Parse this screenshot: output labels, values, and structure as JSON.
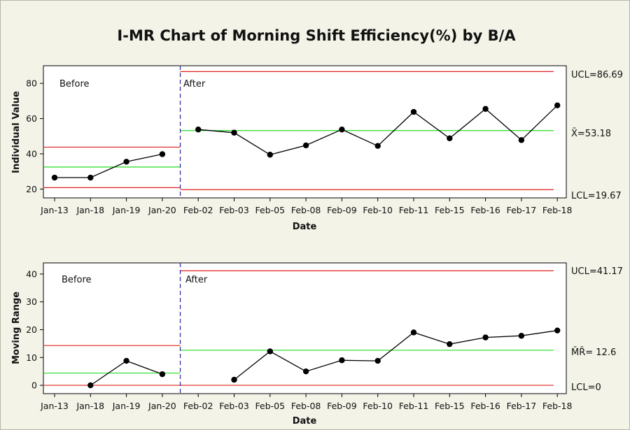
{
  "chart_data": {
    "title": "I-MR Chart of Morning Shift Efficiency(%) by B/A",
    "dates": [
      "Jan-13",
      "Jan-18",
      "Jan-19",
      "Jan-20",
      "Feb-02",
      "Feb-03",
      "Feb-05",
      "Feb-08",
      "Feb-09",
      "Feb-10",
      "Feb-11",
      "Feb-15",
      "Feb-16",
      "Feb-17",
      "Feb-18"
    ],
    "stage_labels": {
      "before": "Before",
      "after": "After"
    },
    "charts": [
      {
        "type": "line",
        "name": "individual",
        "ylabel": "Individual Value",
        "xlabel": "Date",
        "ylim": [
          15,
          90
        ],
        "yticks": [
          20,
          40,
          60,
          80
        ],
        "values": [
          26.5,
          26.5,
          35.5,
          39.8,
          53.8,
          52.0,
          39.5,
          44.8,
          53.8,
          44.5,
          63.8,
          48.8,
          65.5,
          47.8,
          67.5
        ],
        "before": {
          "ucl": 43.8,
          "center": 32.5,
          "lcl": 20.8
        },
        "after": {
          "ucl": 86.69,
          "center": 53.18,
          "lcl": 19.67
        },
        "labels": {
          "ucl": "UCL=86.69",
          "center": "X̄=53.18",
          "lcl": "LCL=19.67"
        }
      },
      {
        "type": "line",
        "name": "moving-range",
        "ylabel": "Moving Range",
        "xlabel": "Date",
        "ylim": [
          -3,
          44
        ],
        "yticks": [
          0,
          10,
          20,
          30,
          40
        ],
        "values": [
          null,
          0.0,
          8.8,
          4.0,
          null,
          2.0,
          12.2,
          5.0,
          9.0,
          8.8,
          19.0,
          14.8,
          17.2,
          17.8,
          19.7
        ],
        "before": {
          "ucl": 14.3,
          "center": 4.4,
          "lcl": 0
        },
        "after": {
          "ucl": 41.17,
          "center": 12.6,
          "lcl": 0
        },
        "labels": {
          "ucl": "UCL=41.17",
          "center": "M̄R̄= 12.6",
          "lcl": "LCL=0"
        }
      }
    ]
  },
  "colors": {
    "data": "#000000",
    "control": "#e0201d",
    "center": "#22dd22",
    "divider": "#3333aa",
    "frame": "#b5b5a8"
  }
}
